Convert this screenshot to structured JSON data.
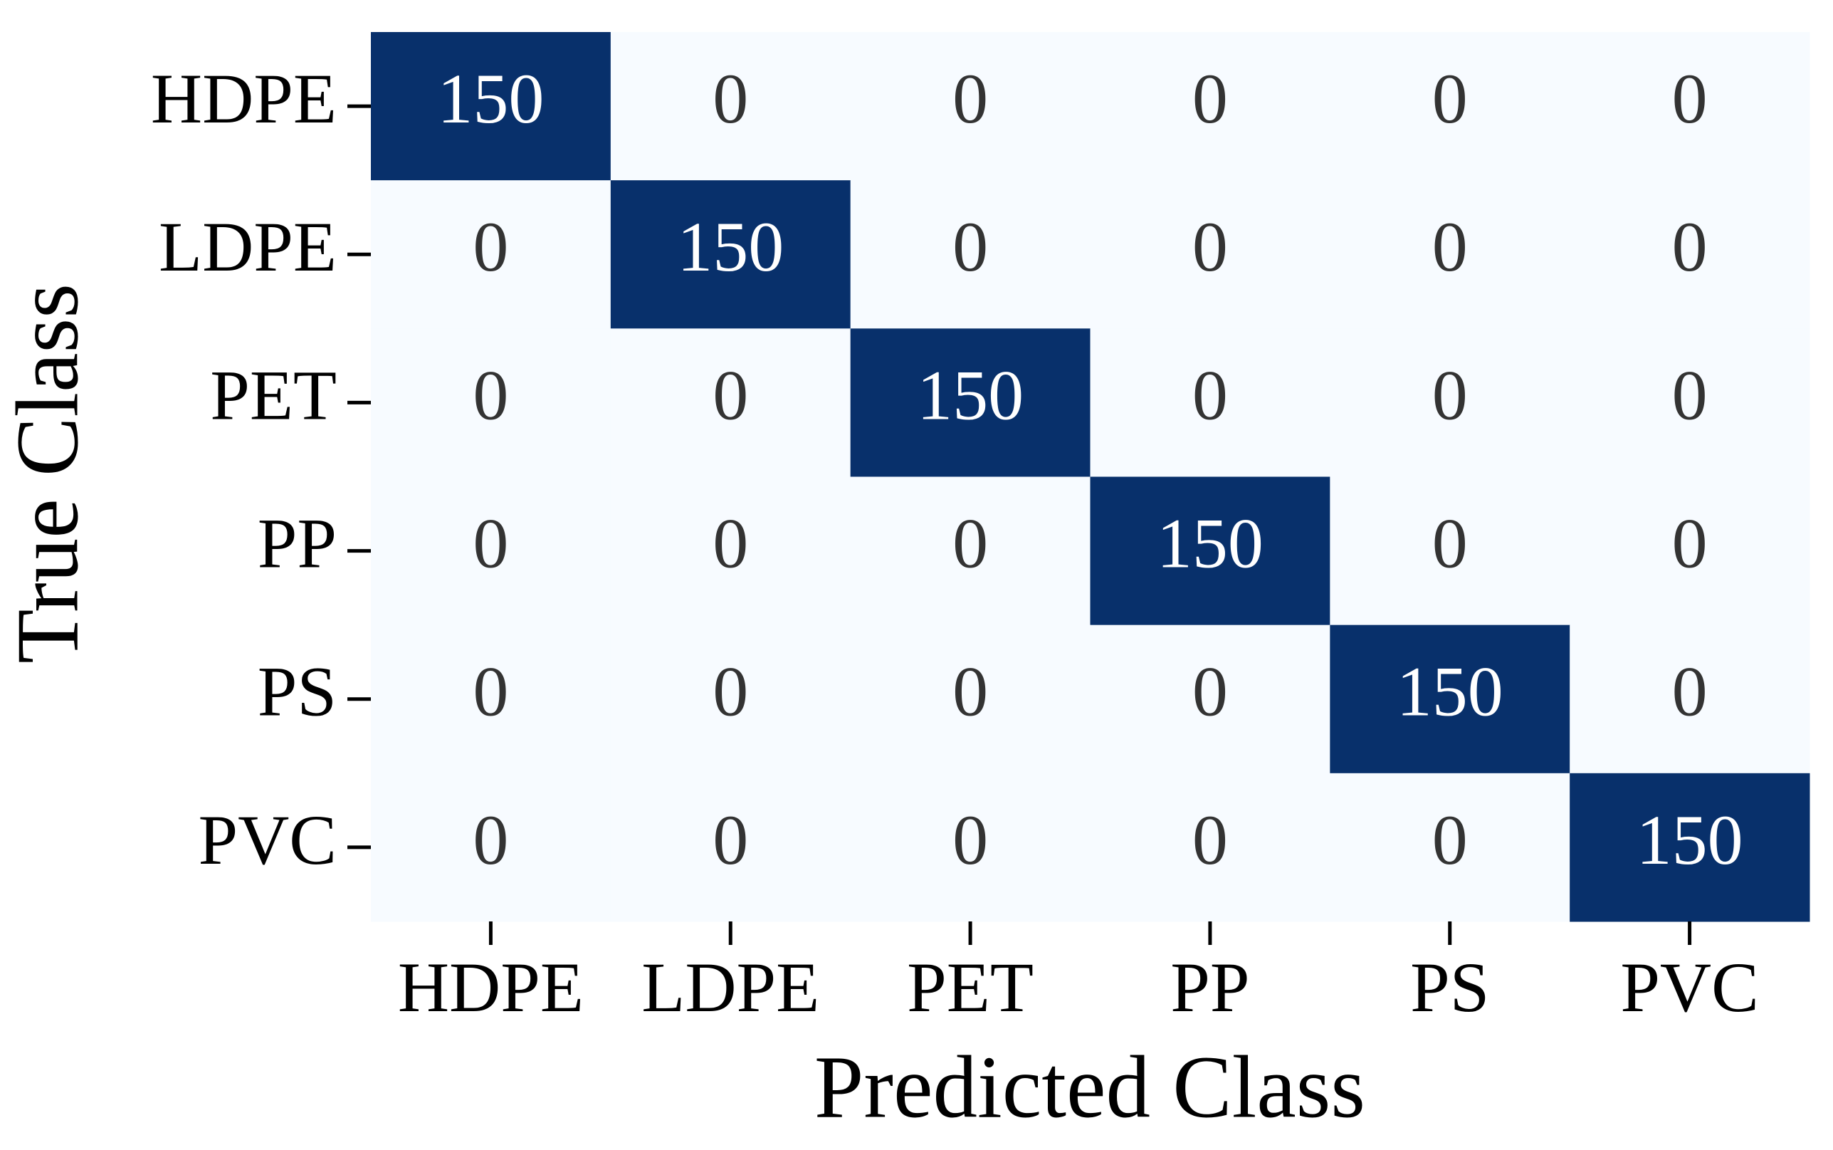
{
  "chart_data": {
    "type": "heatmap",
    "x_label": "Predicted Class",
    "y_label": "True Class",
    "x_categories": [
      "HDPE",
      "LDPE",
      "PET",
      "PP",
      "PS",
      "PVC"
    ],
    "y_categories": [
      "HDPE",
      "LDPE",
      "PET",
      "PP",
      "PS",
      "PVC"
    ],
    "values": [
      [
        150,
        0,
        0,
        0,
        0,
        0
      ],
      [
        0,
        150,
        0,
        0,
        0,
        0
      ],
      [
        0,
        0,
        150,
        0,
        0,
        0
      ],
      [
        0,
        0,
        0,
        150,
        0,
        0
      ],
      [
        0,
        0,
        0,
        0,
        150,
        0
      ],
      [
        0,
        0,
        0,
        0,
        0,
        150
      ]
    ],
    "colormap": [
      "#f7fbff",
      "#08306b"
    ],
    "annotation_colors": [
      "#333333",
      "#ffffff"
    ]
  }
}
